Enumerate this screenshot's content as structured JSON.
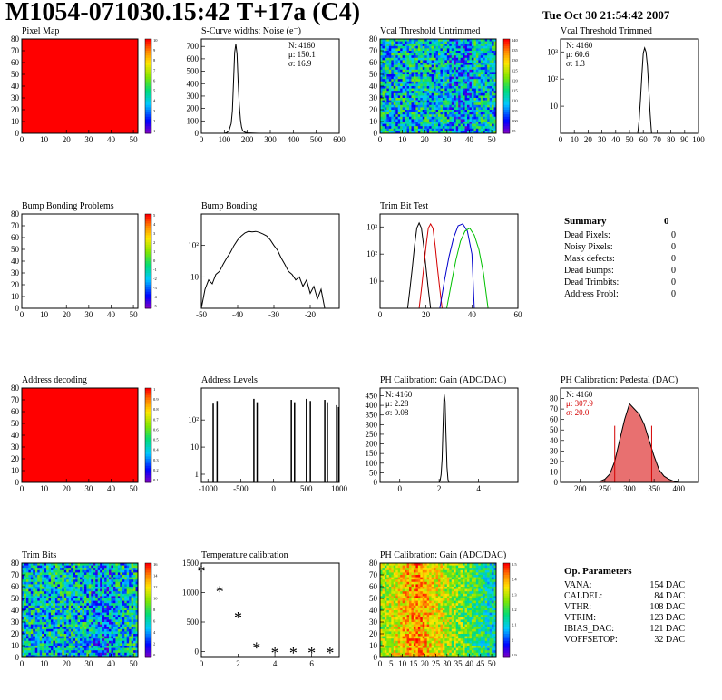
{
  "header": {
    "title": "M1054-071030.15:42 T+17a (C4)",
    "date": "Tue Oct 30 21:54:42 2007"
  },
  "colors": {
    "hist_line": "#000000",
    "trim_red": "#d40000",
    "trim_blue": "#0000cc",
    "trim_green": "#00c000",
    "map_red": "#ff0000",
    "pedestal_fill": "#e87070",
    "stats_red": "#d40000"
  },
  "chart_data": [
    {
      "id": "pixel_map",
      "type": "heatmap",
      "title": "Pixel Map",
      "xlim": [
        0,
        52
      ],
      "ylim": [
        0,
        80
      ],
      "xticks": [
        0,
        10,
        20,
        30,
        40,
        50
      ],
      "yticks": [
        0,
        10,
        20,
        30,
        40,
        50,
        60,
        70,
        80
      ],
      "fill": "uniform",
      "value": 10,
      "zscale": [
        "10",
        "9",
        "8",
        "7",
        "6",
        "5",
        "4",
        "3",
        "2",
        "1"
      ]
    },
    {
      "id": "scurve_noise",
      "type": "line",
      "title": "S-Curve widths: Noise (e⁻)",
      "xlim": [
        0,
        600
      ],
      "ylim": [
        0,
        760
      ],
      "xticks": [
        0,
        100,
        200,
        300,
        400,
        500,
        600
      ],
      "yticks": [
        0,
        100,
        200,
        300,
        400,
        500,
        600,
        700
      ],
      "stats": [
        "N: 4160",
        "μ: 150.1",
        "σ: 16.9"
      ],
      "x": [
        100,
        110,
        120,
        130,
        135,
        140,
        145,
        150,
        155,
        160,
        165,
        170,
        175,
        180,
        190,
        200,
        220,
        250
      ],
      "y": [
        0,
        5,
        20,
        80,
        180,
        420,
        650,
        720,
        640,
        420,
        230,
        110,
        50,
        20,
        8,
        4,
        2,
        0
      ]
    },
    {
      "id": "vcal_untrimmed",
      "type": "heatmap",
      "title": "Vcal Threshold Untrimmed",
      "xlim": [
        0,
        52
      ],
      "ylim": [
        0,
        80
      ],
      "xticks": [
        0,
        10,
        20,
        30,
        40,
        50
      ],
      "yticks": [
        0,
        10,
        20,
        30,
        40,
        50,
        60,
        70,
        80
      ],
      "fill": "noise",
      "value_range": [
        95,
        140
      ],
      "zscale": [
        "140",
        "135",
        "130",
        "125",
        "120",
        "115",
        "110",
        "105",
        "100",
        "95"
      ]
    },
    {
      "id": "vcal_trimmed",
      "type": "line",
      "title": "Vcal Threshold Trimmed",
      "xlim": [
        0,
        100
      ],
      "ylim": [
        1,
        3000
      ],
      "log_y": true,
      "xticks": [
        0,
        10,
        20,
        30,
        40,
        50,
        60,
        70,
        80,
        90,
        100
      ],
      "yticks": [
        10,
        100,
        1000
      ],
      "stats": [
        "N: 4160",
        "μ: 60.6",
        "σ:  1.3"
      ],
      "x": [
        56,
        57,
        58,
        59,
        60,
        61,
        62,
        63,
        64,
        65,
        66
      ],
      "y": [
        1,
        3,
        20,
        150,
        900,
        1400,
        1000,
        300,
        40,
        5,
        1
      ]
    },
    {
      "id": "bump_problems",
      "type": "heatmap",
      "title": "Bump Bonding Problems",
      "xlim": [
        0,
        52
      ],
      "ylim": [
        0,
        80
      ],
      "xticks": [
        0,
        10,
        20,
        30,
        40,
        50
      ],
      "yticks": [
        0,
        10,
        20,
        30,
        40,
        50,
        60,
        70,
        80
      ],
      "fill": "empty",
      "zscale": [
        "5",
        "4",
        "3",
        "2",
        "1",
        "0",
        "-1",
        "-2",
        "-3",
        "-4",
        "-5"
      ]
    },
    {
      "id": "bump_bonding",
      "type": "line",
      "title": "Bump Bonding",
      "xlim": [
        -50,
        -12
      ],
      "ylim": [
        1,
        1000
      ],
      "log_y": true,
      "xticks": [
        -50,
        -40,
        -30,
        -20
      ],
      "yticks": [
        10,
        100
      ],
      "x": [
        -50,
        -49,
        -48,
        -47,
        -46,
        -45,
        -44,
        -43,
        -42,
        -41,
        -40,
        -39,
        -38,
        -37,
        -36,
        -35,
        -34,
        -33,
        -32,
        -31,
        -30,
        -29,
        -28,
        -27,
        -26,
        -25,
        -24,
        -23,
        -22,
        -21,
        -20,
        -19,
        -18,
        -17,
        -16,
        -15
      ],
      "y": [
        1,
        4,
        8,
        6,
        12,
        15,
        25,
        40,
        60,
        100,
        150,
        200,
        250,
        280,
        270,
        280,
        260,
        230,
        200,
        150,
        100,
        70,
        40,
        25,
        15,
        12,
        8,
        10,
        5,
        8,
        3,
        5,
        2,
        4,
        1,
        1
      ]
    },
    {
      "id": "trim_bit_test",
      "type": "line",
      "title": "Trim Bit Test",
      "xlim": [
        0,
        60
      ],
      "ylim": [
        1,
        3000
      ],
      "log_y": true,
      "xticks": [
        0,
        20,
        40,
        60
      ],
      "yticks": [
        10,
        100,
        1000
      ],
      "series": [
        {
          "x": [
            12,
            13,
            14,
            15,
            16,
            17,
            18,
            19,
            20,
            21,
            22
          ],
          "y": [
            1,
            5,
            30,
            200,
            900,
            1400,
            900,
            200,
            30,
            5,
            1
          ]
        },
        {
          "x": [
            17,
            18,
            19,
            20,
            21,
            22,
            23,
            24,
            25,
            26,
            27
          ],
          "y": [
            1,
            5,
            30,
            200,
            900,
            1300,
            900,
            200,
            30,
            5,
            1
          ]
        },
        {
          "x": [
            26,
            28,
            30,
            32,
            34,
            36,
            38,
            40,
            41
          ],
          "y": [
            1,
            10,
            80,
            400,
            1100,
            1300,
            700,
            100,
            1
          ]
        },
        {
          "x": [
            29,
            31,
            33,
            35,
            37,
            39,
            41,
            43,
            45,
            47
          ],
          "y": [
            1,
            8,
            60,
            300,
            700,
            900,
            500,
            150,
            20,
            1
          ]
        }
      ]
    },
    {
      "id": "address_decoding",
      "type": "heatmap",
      "title": "Address decoding",
      "xlim": [
        0,
        52
      ],
      "ylim": [
        0,
        80
      ],
      "xticks": [
        0,
        10,
        20,
        30,
        40,
        50
      ],
      "yticks": [
        0,
        10,
        20,
        30,
        40,
        50,
        60,
        70,
        80
      ],
      "fill": "uniform",
      "value": 1,
      "zscale": [
        "1",
        "0.9",
        "0.8",
        "0.7",
        "0.6",
        "0.5",
        "0.4",
        "0.3",
        "0.2",
        "0.1"
      ]
    },
    {
      "id": "address_levels",
      "type": "bar",
      "title": "Address Levels",
      "xlim": [
        -1100,
        1000
      ],
      "ylim": [
        0.5,
        1500
      ],
      "log_y": true,
      "xticks": [
        -1000,
        -500,
        0,
        500,
        1000
      ],
      "yticks": [
        1,
        10,
        100
      ],
      "peaks_x": [
        -920,
        -860,
        -300,
        -250,
        270,
        320,
        500,
        560,
        780,
        820,
        960,
        990
      ],
      "peaks_y": [
        400,
        500,
        600,
        450,
        550,
        450,
        600,
        500,
        550,
        450,
        350,
        300
      ]
    },
    {
      "id": "ph_gain",
      "type": "line",
      "title": "PH Calibration: Gain (ADC/DAC)",
      "xlim": [
        -1,
        6
      ],
      "ylim": [
        0,
        490
      ],
      "xticks": [
        0,
        2,
        4
      ],
      "yticks": [
        0,
        50,
        100,
        150,
        200,
        250,
        300,
        350,
        400,
        450
      ],
      "stats": [
        "N: 4160",
        "μ: 2.28",
        "σ: 0.08"
      ],
      "x": [
        2.0,
        2.05,
        2.1,
        2.15,
        2.2,
        2.25,
        2.3,
        2.35,
        2.4,
        2.45,
        2.5
      ],
      "y": [
        0,
        10,
        40,
        120,
        300,
        460,
        420,
        250,
        80,
        15,
        0
      ]
    },
    {
      "id": "ph_pedestal",
      "type": "area",
      "title": "PH Calibration: Pedestal (DAC)",
      "xlim": [
        160,
        440
      ],
      "ylim": [
        0,
        90
      ],
      "xticks": [
        200,
        250,
        300,
        350,
        400
      ],
      "yticks": [
        0,
        10,
        20,
        30,
        40,
        50,
        60,
        70,
        80
      ],
      "stats": [
        "N: 4160",
        "μ: 307.9",
        "σ: 20.0"
      ],
      "fit_markers": [
        270,
        345
      ],
      "x": [
        240,
        250,
        260,
        270,
        280,
        290,
        300,
        310,
        320,
        330,
        340,
        350,
        360,
        370,
        380,
        390,
        400
      ],
      "y": [
        1,
        3,
        8,
        20,
        40,
        60,
        75,
        70,
        65,
        55,
        40,
        25,
        12,
        6,
        3,
        1,
        0
      ]
    },
    {
      "id": "trim_bits",
      "type": "heatmap",
      "title": "Trim Bits",
      "xlim": [
        0,
        52
      ],
      "ylim": [
        0,
        80
      ],
      "xticks": [
        0,
        10,
        20,
        30,
        40,
        50
      ],
      "yticks": [
        0,
        10,
        20,
        30,
        40,
        50,
        60,
        70,
        80
      ],
      "fill": "noise",
      "value_range": [
        0,
        16
      ],
      "zscale": [
        "16",
        "14",
        "12",
        "10",
        "8",
        "6",
        "4",
        "2",
        "0"
      ]
    },
    {
      "id": "temp_calibration",
      "type": "scatter",
      "title": "Temperature calibration",
      "xlim": [
        0,
        7.5
      ],
      "ylim": [
        -100,
        1500
      ],
      "xticks": [
        0,
        2,
        4,
        6
      ],
      "yticks": [
        0,
        500,
        1000,
        1500
      ],
      "x": [
        0,
        1,
        2,
        3,
        4,
        5,
        6,
        7
      ],
      "y": [
        1380,
        1030,
        590,
        80,
        -10,
        -10,
        -10,
        -10
      ]
    },
    {
      "id": "ph_gain_map",
      "type": "heatmap",
      "title": "PH Calibration: Gain (ADC/DAC)",
      "xlim": [
        0,
        52
      ],
      "ylim": [
        0,
        80
      ],
      "xticks": [
        0,
        5,
        10,
        15,
        20,
        25,
        30,
        35,
        40,
        45,
        50
      ],
      "yticks": [
        0,
        10,
        20,
        30,
        40,
        50,
        60,
        70,
        80
      ],
      "fill": "gain",
      "value_range": [
        1.9,
        2.5
      ],
      "zscale": [
        "2.5",
        "2.4",
        "2.3",
        "2.2",
        "2.1",
        "2",
        "1.9"
      ]
    }
  ],
  "summary": {
    "title": "Summary",
    "value": "0",
    "rows": [
      {
        "label": "Dead Pixels:",
        "value": "0"
      },
      {
        "label": "Noisy Pixels:",
        "value": "0"
      },
      {
        "label": "Mask defects:",
        "value": "0"
      },
      {
        "label": "Dead Bumps:",
        "value": "0"
      },
      {
        "label": "Dead Trimbits:",
        "value": "0"
      },
      {
        "label": "Address Probl:",
        "value": "0"
      }
    ]
  },
  "op_params": {
    "title": "Op. Parameters",
    "rows": [
      {
        "label": "VANA:",
        "value": "154 DAC"
      },
      {
        "label": "CALDEL:",
        "value": "84 DAC"
      },
      {
        "label": "VTHR:",
        "value": "108 DAC"
      },
      {
        "label": "VTRIM:",
        "value": "123 DAC"
      },
      {
        "label": "IBIAS_DAC:",
        "value": "121 DAC"
      },
      {
        "label": "VOFFSETOP:",
        "value": "32 DAC"
      }
    ]
  }
}
